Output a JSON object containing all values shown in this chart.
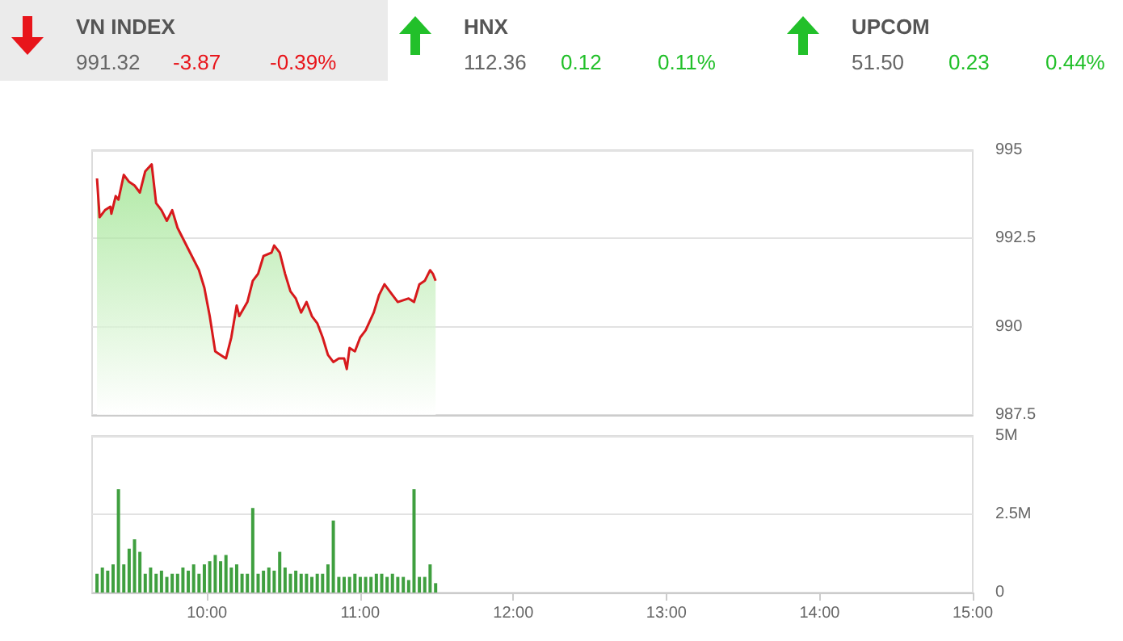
{
  "chart_data": [
    {
      "type": "other",
      "categories": [
        "VN INDEX",
        "HNX",
        "UPCOM"
      ],
      "annotations": [
        "991.32",
        "-3.87",
        "-0.39%",
        "112.36",
        "0.12",
        "0.11%",
        "51.50",
        "0.23",
        "0.44%"
      ],
      "colors": [
        "#e8151b",
        "#22c02a",
        "#22c02a"
      ]
    },
    {
      "type": "area",
      "x": [
        9.282,
        9.299,
        9.334,
        9.369,
        9.376,
        9.404,
        9.422,
        9.457,
        9.492,
        9.527,
        9.562,
        9.597,
        9.639,
        9.668,
        9.703,
        9.738,
        9.773,
        9.808,
        9.878,
        9.948,
        9.983,
        10.018,
        10.054,
        10.089,
        10.124,
        10.159,
        10.194,
        10.211,
        10.264,
        10.299,
        10.334,
        10.369,
        10.422,
        10.439,
        10.475,
        10.51,
        10.545,
        10.58,
        10.615,
        10.65,
        10.685,
        10.72,
        10.755,
        10.79,
        10.825,
        10.861,
        10.896,
        10.913,
        10.931,
        10.966,
        11.001,
        11.036,
        11.089,
        11.124,
        11.159,
        11.211,
        11.246,
        11.317,
        11.352,
        11.387,
        11.422,
        11.457,
        11.475,
        11.493
      ],
      "series": [
        {
          "color": "#d7191c",
          "values": [
            994.2,
            993.1,
            993.3,
            993.4,
            993.2,
            993.7,
            993.6,
            994.3,
            994.1,
            994.0,
            993.8,
            994.4,
            994.6,
            993.5,
            993.3,
            993.0,
            993.3,
            992.8,
            992.2,
            991.6,
            991.1,
            990.3,
            989.3,
            989.2,
            989.1,
            989.7,
            990.6,
            990.3,
            990.7,
            991.3,
            991.5,
            992.0,
            992.1,
            992.3,
            992.1,
            991.5,
            991.0,
            990.8,
            990.4,
            990.7,
            990.3,
            990.1,
            989.7,
            989.2,
            989.0,
            989.1,
            989.1,
            988.8,
            989.4,
            989.3,
            989.7,
            989.9,
            990.4,
            990.9,
            991.2,
            990.9,
            990.7,
            990.8,
            990.7,
            991.2,
            991.3,
            991.6,
            991.5,
            991.3
          ]
        }
      ],
      "xlim": [
        9.25,
        15
      ],
      "ylim": [
        987.5,
        995
      ],
      "yticks": [
        987.5,
        990,
        992.5,
        995
      ],
      "grid": "y",
      "tick_labels": "y"
    },
    {
      "type": "bar",
      "x": [
        9.282,
        9.317,
        9.352,
        9.387,
        9.422,
        9.457,
        9.492,
        9.527,
        9.562,
        9.597,
        9.632,
        9.668,
        9.703,
        9.738,
        9.773,
        9.808,
        9.843,
        9.878,
        9.913,
        9.948,
        9.983,
        10.018,
        10.054,
        10.089,
        10.124,
        10.159,
        10.194,
        10.229,
        10.264,
        10.299,
        10.334,
        10.369,
        10.404,
        10.439,
        10.475,
        10.51,
        10.545,
        10.58,
        10.615,
        10.65,
        10.685,
        10.72,
        10.755,
        10.79,
        10.825,
        10.861,
        10.896,
        10.931,
        10.966,
        11.001,
        11.036,
        11.071,
        11.106,
        11.141,
        11.176,
        11.211,
        11.246,
        11.282,
        11.317,
        11.352,
        11.387,
        11.422,
        11.457,
        11.493
      ],
      "series": [
        {
          "color": "#3f9f3f",
          "values": [
            0.6,
            0.8,
            0.7,
            0.9,
            3.3,
            0.9,
            1.4,
            1.7,
            1.3,
            0.6,
            0.8,
            0.6,
            0.7,
            0.5,
            0.6,
            0.6,
            0.8,
            0.7,
            0.9,
            0.6,
            0.9,
            1.0,
            1.2,
            1.0,
            1.2,
            0.8,
            0.9,
            0.6,
            0.6,
            2.7,
            0.6,
            0.7,
            0.8,
            0.7,
            1.3,
            0.8,
            0.6,
            0.7,
            0.6,
            0.6,
            0.5,
            0.6,
            0.6,
            0.9,
            2.3,
            0.5,
            0.5,
            0.5,
            0.6,
            0.5,
            0.5,
            0.5,
            0.6,
            0.6,
            0.5,
            0.6,
            0.5,
            0.5,
            0.4,
            3.3,
            0.5,
            0.5,
            0.9,
            0.3
          ]
        }
      ],
      "xlim": [
        9.25,
        15
      ],
      "xticks": [
        {
          "value": 10,
          "label": "10:00"
        },
        {
          "value": 11,
          "label": "11:00"
        },
        {
          "value": 12,
          "label": "12:00"
        },
        {
          "value": 13,
          "label": "13:00"
        },
        {
          "value": 14,
          "label": "14:00"
        },
        {
          "value": 15,
          "label": "15:00"
        }
      ],
      "ylim": [
        0,
        5
      ],
      "yticks": [
        0,
        {
          "value": 2.5,
          "label": "2.5M"
        },
        {
          "value": 5,
          "label": "5M"
        }
      ],
      "grid": "y"
    }
  ]
}
